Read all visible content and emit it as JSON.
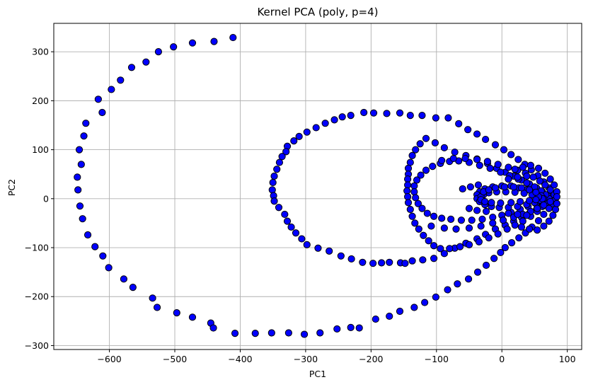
{
  "colors": {
    "point_fill": "#0000ff",
    "point_edge": "#000000",
    "grid": "#b0b0b0",
    "axes": "#000000",
    "background": "#ffffff"
  },
  "chart_data": {
    "type": "scatter",
    "title": "Kernel PCA (poly, p=4)",
    "xlabel": "PC1",
    "ylabel": "PC2",
    "xlim": [
      -685,
      122
    ],
    "ylim": [
      -308,
      358
    ],
    "xticks": [
      -600,
      -500,
      -400,
      -300,
      -200,
      -100,
      0,
      100
    ],
    "xtick_labels": [
      "−600",
      "−500",
      "−400",
      "−300",
      "−200",
      "−100",
      "0",
      "100"
    ],
    "yticks": [
      -300,
      -200,
      -100,
      0,
      100,
      200,
      300
    ],
    "ytick_labels": [
      "−300",
      "−200",
      "−100",
      "0",
      "100",
      "200",
      "300"
    ],
    "grid": true,
    "legend": "none",
    "series": [
      {
        "marker": "circle",
        "points": [
          [
            -411,
            329
          ],
          [
            -440,
            321
          ],
          [
            -473,
            318
          ],
          [
            -502,
            310
          ],
          [
            -525,
            300
          ],
          [
            -544,
            279
          ],
          [
            -566,
            268
          ],
          [
            -583,
            242
          ],
          [
            -597,
            223
          ],
          [
            -617,
            203
          ],
          [
            -611,
            176
          ],
          [
            -636,
            154
          ],
          [
            -639,
            128
          ],
          [
            -646,
            100
          ],
          [
            -643,
            70
          ],
          [
            -649,
            44
          ],
          [
            -648,
            18
          ],
          [
            -645,
            -15
          ],
          [
            -641,
            -41
          ],
          [
            -633,
            -74
          ],
          [
            -622,
            -98
          ],
          [
            -610,
            -117
          ],
          [
            -601,
            -141
          ],
          [
            -578,
            -164
          ],
          [
            -564,
            -181
          ],
          [
            -534,
            -203
          ],
          [
            -527,
            -222
          ],
          [
            -497,
            -233
          ],
          [
            -473,
            -242
          ],
          [
            -445,
            -254
          ],
          [
            -441,
            -264
          ],
          [
            -408,
            -275
          ],
          [
            -377,
            -275
          ],
          [
            -352,
            -274
          ],
          [
            -326,
            -274
          ],
          [
            -302,
            -277
          ],
          [
            -278,
            -274
          ],
          [
            -252,
            -266
          ],
          [
            -231,
            -263
          ],
          [
            -218,
            -264
          ],
          [
            -193,
            -246
          ],
          [
            -172,
            -240
          ],
          [
            -156,
            -230
          ],
          [
            -134,
            -222
          ],
          [
            -118,
            -212
          ],
          [
            -101,
            -201
          ],
          [
            -83,
            -186
          ],
          [
            -68,
            -174
          ],
          [
            -51,
            -164
          ],
          [
            -37,
            -150
          ],
          [
            -24,
            -136
          ],
          [
            -12,
            -122
          ],
          [
            -2,
            -110
          ],
          [
            5,
            -100
          ],
          [
            15,
            -90
          ],
          [
            26,
            -80
          ],
          [
            36,
            -70
          ],
          [
            46,
            -58
          ],
          [
            56,
            -45
          ],
          [
            64,
            -32
          ],
          [
            72,
            -20
          ],
          [
            78,
            -10
          ],
          [
            82,
            0
          ],
          [
            78,
            10
          ],
          [
            72,
            22
          ],
          [
            64,
            34
          ],
          [
            55,
            47
          ],
          [
            45,
            59
          ],
          [
            35,
            70
          ],
          [
            25,
            80
          ],
          [
            14,
            90
          ],
          [
            3,
            100
          ],
          [
            -10,
            110
          ],
          [
            -25,
            121
          ],
          [
            -38,
            132
          ],
          [
            -52,
            141
          ],
          [
            -66,
            153
          ],
          [
            -82,
            165
          ],
          [
            -101,
            165
          ],
          [
            -122,
            170
          ],
          [
            -140,
            170
          ],
          [
            -156,
            175
          ],
          [
            -176,
            174
          ],
          [
            -196,
            175
          ],
          [
            -211,
            176
          ],
          [
            -231,
            170
          ],
          [
            -244,
            167
          ],
          [
            -256,
            161
          ],
          [
            -270,
            154
          ],
          [
            -284,
            145
          ],
          [
            -298,
            136
          ],
          [
            -310,
            127
          ],
          [
            -318,
            118
          ],
          [
            -328,
            107
          ],
          [
            -330,
            96
          ],
          [
            -336,
            86
          ],
          [
            -340,
            74
          ],
          [
            -344,
            60
          ],
          [
            -348,
            46
          ],
          [
            -350,
            33
          ],
          [
            -351,
            18
          ],
          [
            -349,
            6
          ],
          [
            -348,
            -5
          ],
          [
            -341,
            -18
          ],
          [
            -332,
            -32
          ],
          [
            -328,
            -46
          ],
          [
            -322,
            -58
          ],
          [
            -315,
            -70
          ],
          [
            -306,
            -82
          ],
          [
            -298,
            -94
          ],
          [
            -281,
            -101
          ],
          [
            -264,
            -107
          ],
          [
            -246,
            -117
          ],
          [
            -230,
            -123
          ],
          [
            -213,
            -130
          ],
          [
            -197,
            -132
          ],
          [
            -184,
            -131
          ],
          [
            -172,
            -130
          ],
          [
            -155,
            -131
          ],
          [
            -148,
            -132
          ],
          [
            -137,
            -127
          ],
          [
            -121,
            -125
          ],
          [
            -104,
            -122
          ],
          [
            -88,
            -112
          ],
          [
            -72,
            -101
          ],
          [
            -55,
            -91
          ],
          [
            -38,
            -82
          ],
          [
            -25,
            -73
          ],
          [
            -10,
            -62
          ],
          [
            5,
            -54
          ],
          [
            18,
            -46
          ],
          [
            30,
            -38
          ],
          [
            42,
            -30
          ],
          [
            53,
            -22
          ],
          [
            62,
            -14
          ],
          [
            70,
            -6
          ],
          [
            72,
            0
          ],
          [
            70,
            6
          ],
          [
            62,
            14
          ],
          [
            53,
            22
          ],
          [
            42,
            30
          ],
          [
            30,
            38
          ],
          [
            18,
            46
          ],
          [
            5,
            54
          ],
          [
            -8,
            62
          ],
          [
            -22,
            72
          ],
          [
            -38,
            81
          ],
          [
            -55,
            88
          ],
          [
            -72,
            95
          ],
          [
            -88,
            104
          ],
          [
            -102,
            114
          ],
          [
            -116,
            123
          ],
          [
            -125,
            112
          ],
          [
            -132,
            100
          ],
          [
            -137,
            88
          ],
          [
            -140,
            74
          ],
          [
            -143,
            62
          ],
          [
            -143,
            50
          ],
          [
            -144,
            40
          ],
          [
            -144,
            28
          ],
          [
            -145,
            16
          ],
          [
            -144,
            4
          ],
          [
            -143,
            -8
          ],
          [
            -140,
            -22
          ],
          [
            -137,
            -36
          ],
          [
            -133,
            -50
          ],
          [
            -127,
            -62
          ],
          [
            -120,
            -75
          ],
          [
            -112,
            -86
          ],
          [
            -104,
            -96
          ],
          [
            -94,
            -102
          ],
          [
            -80,
            -102
          ],
          [
            -64,
            -98
          ],
          [
            -50,
            -94
          ],
          [
            -35,
            -88
          ],
          [
            -20,
            -80
          ],
          [
            -6,
            -72
          ],
          [
            8,
            -62
          ],
          [
            20,
            -54
          ],
          [
            32,
            -46
          ],
          [
            44,
            -36
          ],
          [
            54,
            -26
          ],
          [
            62,
            -16
          ],
          [
            68,
            -8
          ],
          [
            72,
            0
          ],
          [
            67,
            8
          ],
          [
            60,
            16
          ],
          [
            50,
            24
          ],
          [
            38,
            32
          ],
          [
            25,
            40
          ],
          [
            12,
            47
          ],
          [
            -2,
            54
          ],
          [
            -18,
            62
          ],
          [
            -34,
            68
          ],
          [
            -50,
            74
          ],
          [
            -66,
            77
          ],
          [
            -80,
            76
          ],
          [
            -94,
            72
          ],
          [
            -106,
            66
          ],
          [
            -116,
            58
          ],
          [
            -124,
            48
          ],
          [
            -130,
            38
          ],
          [
            -134,
            26
          ],
          [
            -134,
            14
          ],
          [
            -132,
            2
          ],
          [
            -128,
            -10
          ],
          [
            -122,
            -20
          ],
          [
            -114,
            -30
          ],
          [
            -104,
            -36
          ],
          [
            -92,
            -40
          ],
          [
            -78,
            -42
          ],
          [
            -62,
            -44
          ],
          [
            -46,
            -44
          ],
          [
            -30,
            -42
          ],
          [
            -14,
            -38
          ],
          [
            0,
            -34
          ],
          [
            14,
            -28
          ],
          [
            28,
            -22
          ],
          [
            40,
            -16
          ],
          [
            52,
            -10
          ],
          [
            60,
            -4
          ],
          [
            64,
            0
          ],
          [
            60,
            6
          ],
          [
            50,
            12
          ],
          [
            38,
            18
          ],
          [
            26,
            22
          ],
          [
            14,
            26
          ],
          [
            0,
            26
          ],
          [
            -14,
            24
          ],
          [
            -26,
            20
          ],
          [
            -34,
            14
          ],
          [
            -38,
            8
          ],
          [
            -38,
            0
          ],
          [
            -34,
            -6
          ],
          [
            -26,
            -12
          ],
          [
            -16,
            -16
          ],
          [
            -4,
            -18
          ],
          [
            10,
            -18
          ],
          [
            24,
            -16
          ],
          [
            38,
            -12
          ],
          [
            50,
            -8
          ],
          [
            58,
            -3
          ],
          [
            62,
            0
          ],
          [
            56,
            4
          ],
          [
            46,
            8
          ],
          [
            34,
            11
          ],
          [
            20,
            13
          ],
          [
            6,
            14
          ],
          [
            -8,
            14
          ],
          [
            -20,
            12
          ],
          [
            -28,
            8
          ],
          [
            -32,
            4
          ],
          [
            -32,
            -2
          ],
          [
            -26,
            -6
          ],
          [
            -16,
            -8
          ],
          [
            -2,
            -9
          ],
          [
            14,
            -8
          ],
          [
            28,
            -6
          ],
          [
            42,
            -4
          ],
          [
            52,
            -2
          ],
          [
            -28,
            14
          ],
          [
            -20,
            18
          ],
          [
            -10,
            22
          ],
          [
            4,
            24
          ],
          [
            18,
            24
          ],
          [
            30,
            22
          ],
          [
            42,
            18
          ],
          [
            52,
            13
          ],
          [
            -92,
            78
          ],
          [
            -74,
            82
          ],
          [
            -56,
            82
          ],
          [
            -38,
            80
          ],
          [
            -22,
            76
          ],
          [
            -6,
            70
          ],
          [
            10,
            64
          ],
          [
            24,
            58
          ],
          [
            36,
            52
          ],
          [
            48,
            44
          ],
          [
            58,
            36
          ],
          [
            66,
            28
          ],
          [
            74,
            18
          ],
          [
            80,
            8
          ],
          [
            -108,
            -56
          ],
          [
            -88,
            -60
          ],
          [
            -70,
            -62
          ],
          [
            -50,
            -60
          ],
          [
            -32,
            -56
          ],
          [
            -14,
            -50
          ],
          [
            2,
            -44
          ],
          [
            18,
            -38
          ],
          [
            32,
            -32
          ],
          [
            44,
            -26
          ],
          [
            54,
            -20
          ],
          [
            64,
            -13
          ],
          [
            74,
            -6
          ],
          [
            20,
            60
          ],
          [
            32,
            64
          ],
          [
            44,
            68
          ],
          [
            56,
            62
          ],
          [
            66,
            52
          ],
          [
            74,
            40
          ],
          [
            80,
            28
          ],
          [
            84,
            14
          ],
          [
            84,
            4
          ],
          [
            30,
            -58
          ],
          [
            42,
            -62
          ],
          [
            54,
            -64
          ],
          [
            64,
            -56
          ],
          [
            72,
            -46
          ],
          [
            78,
            -34
          ],
          [
            82,
            -22
          ],
          [
            84,
            -10
          ],
          [
            -60,
            20
          ],
          [
            -48,
            24
          ],
          [
            -36,
            28
          ],
          [
            -50,
            -20
          ],
          [
            -38,
            -24
          ],
          [
            -24,
            -26
          ],
          [
            10,
            40
          ],
          [
            24,
            44
          ],
          [
            38,
            46
          ],
          [
            10,
            -30
          ],
          [
            24,
            -32
          ],
          [
            38,
            -34
          ]
        ]
      }
    ]
  }
}
